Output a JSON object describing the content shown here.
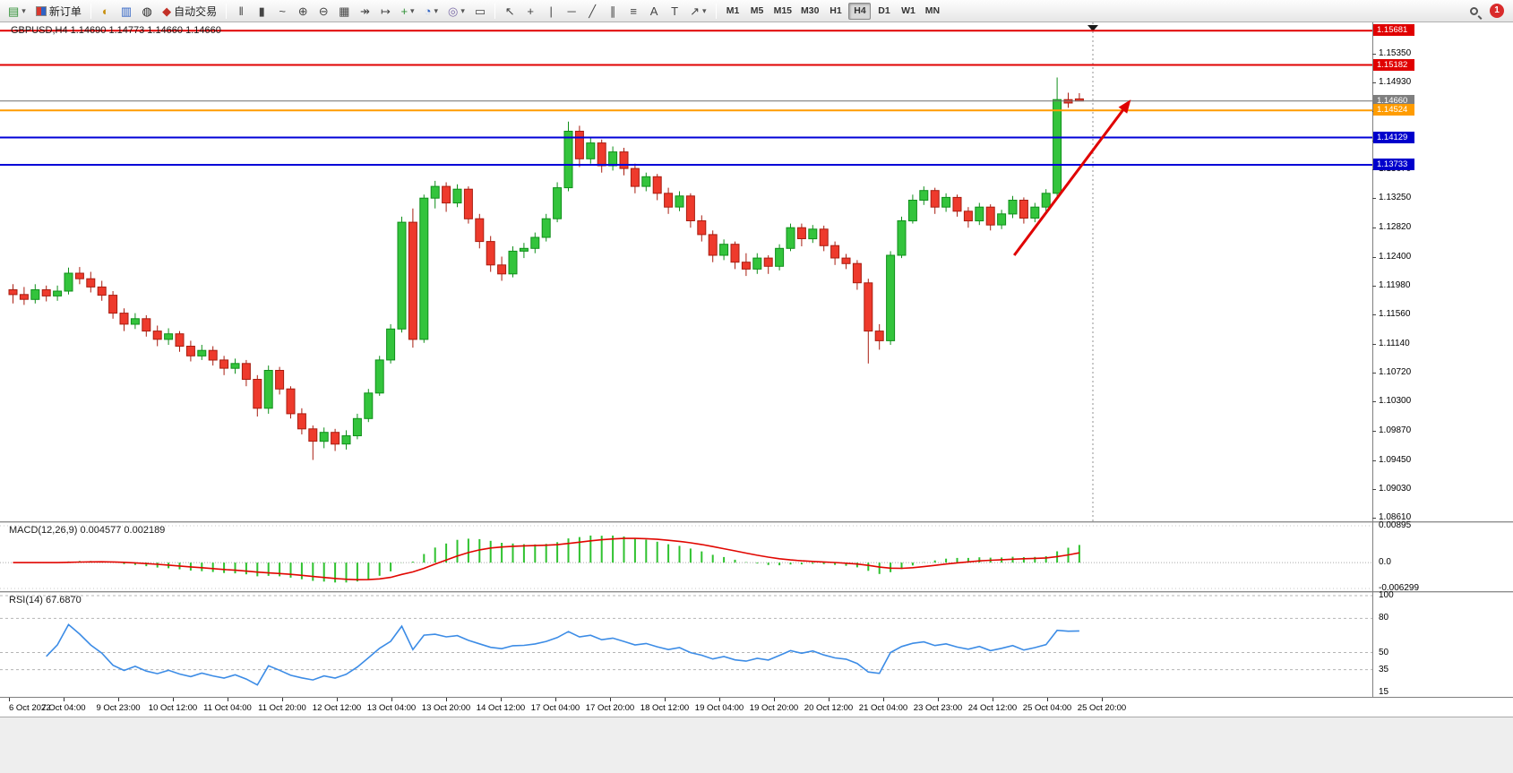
{
  "toolbar": {
    "new_order_label": "新订单",
    "autotrade_label": "自动交易",
    "timeframes": [
      "M1",
      "M5",
      "M15",
      "M30",
      "H1",
      "H4",
      "D1",
      "W1",
      "MN"
    ],
    "active_timeframe": "H4",
    "notification_count": "1"
  },
  "icons": {
    "new_chart": "▤",
    "dropdown": "▾",
    "profiles": "◐",
    "market_watch": "▥",
    "navigator": "◍",
    "autotrade": "◆",
    "bars": "‖",
    "candles_type": "▮",
    "line_type": "~",
    "zoom_in": "⊕",
    "zoom_out": "⊖",
    "tile": "▦",
    "auto_scroll": "↠",
    "shift": "↦",
    "indicators": "+",
    "periods": "◔",
    "templates": "◎",
    "alerts": "▭",
    "cursor": "↖",
    "crosshair": "+",
    "vline": "|",
    "hline": "─",
    "trendline": "╱",
    "channel": "∥",
    "fibonacci": "≡",
    "text": "A",
    "text_label": "T",
    "arrows": "↗"
  },
  "chart_data": {
    "type": "candlestick",
    "symbol": "GBPUSD",
    "period": "H4",
    "ohlc_label": "GBPUSD,H4  1.14690 1.14773 1.14660 1.14660",
    "current_price": "1.14660",
    "colors": {
      "up": "#33c43c",
      "up_stroke": "#0f8f1a",
      "down": "#ee3a2c",
      "down_stroke": "#a81d10",
      "macd_hist": "#2fc22f",
      "macd_signal": "#e10600",
      "rsi": "#3c8ce6",
      "hline_red": "#e00000",
      "hline_orange": "#ff9c00",
      "hline_blue": "#0000d8",
      "hline_gray": "#6f6f6f"
    },
    "price_axis": {
      "ticks": [
        1.1535,
        1.1493,
        1.1451,
        1.1409,
        1.1367,
        1.1325,
        1.1282,
        1.124,
        1.1198,
        1.1156,
        1.1114,
        1.1072,
        1.103,
        1.0987,
        1.0945,
        1.0903,
        1.0861
      ],
      "badges": [
        {
          "price": 1.15681,
          "label": "1.15681",
          "bg": "#e00000"
        },
        {
          "price": 1.15182,
          "label": "1.15182",
          "bg": "#e00000"
        },
        {
          "price": 1.1466,
          "label": "1.14660",
          "bg": "#7f7f7f"
        },
        {
          "price": 1.14524,
          "label": "1.14524",
          "bg": "#ff9c00"
        },
        {
          "price": 1.14129,
          "label": "1.14129",
          "bg": "#0000cc"
        },
        {
          "price": 1.13733,
          "label": "1.13733",
          "bg": "#0000cc"
        }
      ]
    },
    "hlines": [
      {
        "price": 1.15681,
        "color": "#e00000",
        "width": 2
      },
      {
        "price": 1.15182,
        "color": "#e00000",
        "width": 2
      },
      {
        "price": 1.1466,
        "color": "#6f6f6f",
        "width": 1
      },
      {
        "price": 1.14524,
        "color": "#ff9c00",
        "width": 2
      },
      {
        "price": 1.14129,
        "color": "#0000d8",
        "width": 2
      },
      {
        "price": 1.13733,
        "color": "#0000d8",
        "width": 2
      }
    ],
    "trend_arrow": {
      "from_index": 90.5,
      "from_price": 1.1242,
      "to_index": 101,
      "to_price": 1.1468,
      "color": "#e00000"
    },
    "candles": [
      [
        1.1192,
        1.12,
        1.1172,
        1.1185
      ],
      [
        1.1185,
        1.1196,
        1.117,
        1.1178
      ],
      [
        1.1178,
        1.12,
        1.1172,
        1.1192
      ],
      [
        1.1192,
        1.1198,
        1.1175,
        1.1183
      ],
      [
        1.1183,
        1.1198,
        1.1176,
        1.119
      ],
      [
        1.119,
        1.1224,
        1.1185,
        1.1216
      ],
      [
        1.1216,
        1.1225,
        1.12,
        1.1208
      ],
      [
        1.1208,
        1.1218,
        1.1188,
        1.1196
      ],
      [
        1.1196,
        1.1205,
        1.1176,
        1.1184
      ],
      [
        1.1184,
        1.119,
        1.115,
        1.1158
      ],
      [
        1.1158,
        1.1165,
        1.1132,
        1.1142
      ],
      [
        1.1142,
        1.1158,
        1.1135,
        1.115
      ],
      [
        1.115,
        1.1155,
        1.1124,
        1.1132
      ],
      [
        1.1132,
        1.114,
        1.111,
        1.112
      ],
      [
        1.112,
        1.1136,
        1.1112,
        1.1128
      ],
      [
        1.1128,
        1.1132,
        1.1102,
        1.111
      ],
      [
        1.111,
        1.1118,
        1.1088,
        1.1096
      ],
      [
        1.1096,
        1.1112,
        1.109,
        1.1104
      ],
      [
        1.1104,
        1.111,
        1.1082,
        1.109
      ],
      [
        1.109,
        1.1096,
        1.1068,
        1.1078
      ],
      [
        1.1078,
        1.1092,
        1.107,
        1.1085
      ],
      [
        1.1085,
        1.109,
        1.1052,
        1.1062
      ],
      [
        1.1062,
        1.1068,
        1.1008,
        1.102
      ],
      [
        1.102,
        1.1082,
        1.1012,
        1.1075
      ],
      [
        1.1075,
        1.108,
        1.104,
        1.1048
      ],
      [
        1.1048,
        1.1052,
        1.1005,
        1.1012
      ],
      [
        1.1012,
        1.102,
        1.0982,
        1.099
      ],
      [
        1.099,
        1.0995,
        1.0945,
        1.0972
      ],
      [
        1.0972,
        1.0992,
        1.0962,
        1.0985
      ],
      [
        1.0985,
        1.099,
        1.0958,
        1.0968
      ],
      [
        1.0968,
        1.0988,
        1.096,
        1.098
      ],
      [
        1.098,
        1.1012,
        1.0975,
        1.1005
      ],
      [
        1.1005,
        1.1048,
        1.1,
        1.1042
      ],
      [
        1.1042,
        1.1096,
        1.1038,
        1.109
      ],
      [
        1.109,
        1.1142,
        1.1085,
        1.1135
      ],
      [
        1.1135,
        1.1298,
        1.113,
        1.129
      ],
      [
        1.129,
        1.131,
        1.1108,
        1.112
      ],
      [
        1.112,
        1.133,
        1.1115,
        1.1325
      ],
      [
        1.1325,
        1.135,
        1.131,
        1.1342
      ],
      [
        1.1342,
        1.1348,
        1.1305,
        1.1318
      ],
      [
        1.1318,
        1.1345,
        1.1312,
        1.1338
      ],
      [
        1.1338,
        1.1342,
        1.1288,
        1.1295
      ],
      [
        1.1295,
        1.1302,
        1.1252,
        1.1262
      ],
      [
        1.1262,
        1.127,
        1.1218,
        1.1228
      ],
      [
        1.1228,
        1.124,
        1.1205,
        1.1215
      ],
      [
        1.1215,
        1.1255,
        1.121,
        1.1248
      ],
      [
        1.1248,
        1.126,
        1.1238,
        1.1252
      ],
      [
        1.1252,
        1.1275,
        1.1245,
        1.1268
      ],
      [
        1.1268,
        1.1302,
        1.1262,
        1.1295
      ],
      [
        1.1295,
        1.1348,
        1.129,
        1.134
      ],
      [
        1.134,
        1.1436,
        1.1335,
        1.1422
      ],
      [
        1.1422,
        1.143,
        1.137,
        1.1382
      ],
      [
        1.1382,
        1.1412,
        1.1375,
        1.1405
      ],
      [
        1.1405,
        1.141,
        1.1362,
        1.1372
      ],
      [
        1.1372,
        1.14,
        1.1365,
        1.1392
      ],
      [
        1.1392,
        1.1398,
        1.1358,
        1.1368
      ],
      [
        1.1368,
        1.1375,
        1.1332,
        1.1342
      ],
      [
        1.1342,
        1.1362,
        1.1335,
        1.1356
      ],
      [
        1.1356,
        1.136,
        1.1322,
        1.1332
      ],
      [
        1.1332,
        1.134,
        1.1302,
        1.1312
      ],
      [
        1.1312,
        1.1335,
        1.1306,
        1.1328
      ],
      [
        1.1328,
        1.1332,
        1.1282,
        1.1292
      ],
      [
        1.1292,
        1.13,
        1.1262,
        1.1272
      ],
      [
        1.1272,
        1.1278,
        1.1232,
        1.1242
      ],
      [
        1.1242,
        1.1265,
        1.1235,
        1.1258
      ],
      [
        1.1258,
        1.1262,
        1.1222,
        1.1232
      ],
      [
        1.1232,
        1.1245,
        1.1212,
        1.1222
      ],
      [
        1.1222,
        1.1245,
        1.1215,
        1.1238
      ],
      [
        1.1238,
        1.1242,
        1.1215,
        1.1226
      ],
      [
        1.1226,
        1.1258,
        1.122,
        1.1252
      ],
      [
        1.1252,
        1.1288,
        1.1248,
        1.1282
      ],
      [
        1.1282,
        1.1288,
        1.1255,
        1.1266
      ],
      [
        1.1266,
        1.1286,
        1.126,
        1.128
      ],
      [
        1.128,
        1.1285,
        1.1248,
        1.1256
      ],
      [
        1.1256,
        1.1262,
        1.1228,
        1.1238
      ],
      [
        1.1238,
        1.1244,
        1.1222,
        1.123
      ],
      [
        1.123,
        1.1235,
        1.1192,
        1.1202
      ],
      [
        1.1202,
        1.1208,
        1.1085,
        1.1132
      ],
      [
        1.1132,
        1.1142,
        1.1105,
        1.1118
      ],
      [
        1.1118,
        1.1248,
        1.1112,
        1.1242
      ],
      [
        1.1242,
        1.1298,
        1.1238,
        1.1292
      ],
      [
        1.1292,
        1.133,
        1.1288,
        1.1322
      ],
      [
        1.1322,
        1.1342,
        1.1315,
        1.1336
      ],
      [
        1.1336,
        1.134,
        1.1302,
        1.1312
      ],
      [
        1.1312,
        1.1332,
        1.1305,
        1.1326
      ],
      [
        1.1326,
        1.133,
        1.1298,
        1.1306
      ],
      [
        1.1306,
        1.1312,
        1.1282,
        1.1292
      ],
      [
        1.1292,
        1.1318,
        1.1286,
        1.1312
      ],
      [
        1.1312,
        1.1316,
        1.1278,
        1.1286
      ],
      [
        1.1286,
        1.1308,
        1.128,
        1.1302
      ],
      [
        1.1302,
        1.1328,
        1.1296,
        1.1322
      ],
      [
        1.1322,
        1.1326,
        1.1288,
        1.1296
      ],
      [
        1.1296,
        1.1318,
        1.129,
        1.1312
      ],
      [
        1.1312,
        1.1338,
        1.1305,
        1.1332
      ],
      [
        1.1332,
        1.15,
        1.1328,
        1.1468
      ],
      [
        1.1468,
        1.1478,
        1.1456,
        1.1463
      ],
      [
        1.1469,
        1.14773,
        1.1466,
        1.1466
      ]
    ],
    "time_axis": {
      "labels": [
        "6 Oct 2022",
        "7 Oct 04:00",
        "9 Oct 23:00",
        "10 Oct 12:00",
        "11 Oct 04:00",
        "11 Oct 20:00",
        "12 Oct 12:00",
        "13 Oct 04:00",
        "13 Oct 20:00",
        "14 Oct 12:00",
        "17 Oct 04:00",
        "17 Oct 20:00",
        "18 Oct 12:00",
        "19 Oct 04:00",
        "19 Oct 20:00",
        "20 Oct 12:00",
        "21 Oct 04:00",
        "23 Oct 23:00",
        "24 Oct 12:00",
        "25 Oct 04:00",
        "25 Oct 20:00"
      ]
    },
    "macd": {
      "name": "MACD(12,26,9)",
      "values": "0.004577 0.002189",
      "fast": 12,
      "slow": 26,
      "signal": 9,
      "axis_max": 0.00895,
      "axis_min": -0.006299,
      "axis_labels": {
        "max": "0.00895",
        "zero": "0.0",
        "min": "-0.006299"
      }
    },
    "rsi": {
      "name": "RSI(14)",
      "value": "67.6870",
      "period": 14,
      "levels": [
        100,
        80,
        50,
        35
      ],
      "axis_labels": [
        "100",
        "80",
        "50",
        "35",
        "15"
      ],
      "axis_min": 15,
      "axis_max": 100
    }
  }
}
